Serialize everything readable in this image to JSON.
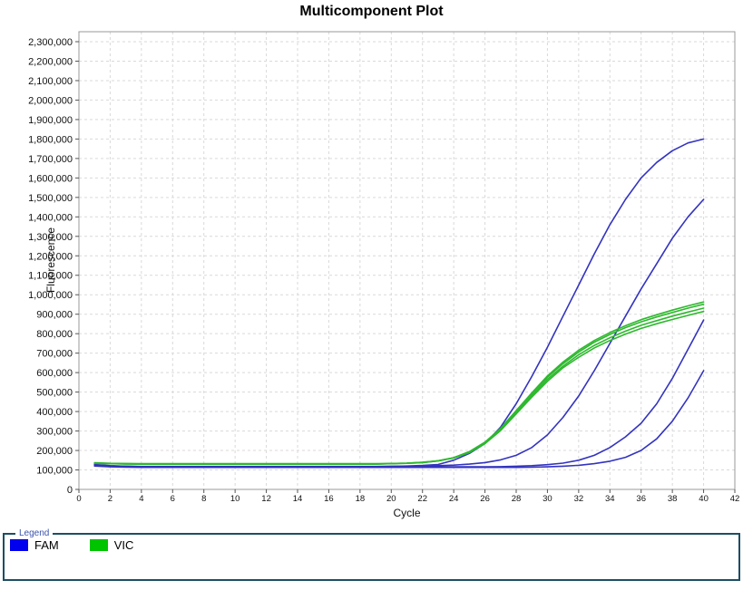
{
  "title": "Multicomponent Plot",
  "axes": {
    "x_label": "Cycle",
    "y_label": "Fluorescence"
  },
  "legend": {
    "title": "Legend",
    "items": [
      {
        "label": "FAM",
        "color": "#0000ee"
      },
      {
        "label": "VIC",
        "color": "#00c400"
      }
    ]
  },
  "colors": {
    "fam_curve": "#3333c0",
    "vic_curve": "#2eb82e",
    "gridline": "#d9d9d9",
    "plot_border": "#9a9a9a",
    "tick": "#555555",
    "legend_border": "#1d4e63"
  },
  "chart_data": {
    "type": "line",
    "title": "Multicomponent Plot",
    "xlabel": "Cycle",
    "ylabel": "Fluorescence",
    "xlim": [
      0,
      42
    ],
    "ylim": [
      0,
      2300000
    ],
    "grid": true,
    "legend_position": "bottom",
    "x_tick_labels": [
      "0",
      "2",
      "4",
      "6",
      "8",
      "10",
      "12",
      "14",
      "16",
      "18",
      "20",
      "22",
      "24",
      "26",
      "28",
      "30",
      "32",
      "34",
      "36",
      "38",
      "40",
      "42"
    ],
    "y_tick_labels": [
      "0",
      "100,000",
      "200,000",
      "300,000",
      "400,000",
      "500,000",
      "600,000",
      "700,000",
      "800,000",
      "900,000",
      "1,000,000",
      "1,100,000",
      "1,200,000",
      "1,300,000",
      "1,400,000",
      "1,500,000",
      "1,600,000",
      "1,700,000",
      "1,800,000",
      "1,900,000",
      "2,000,000",
      "2,100,000",
      "2,200,000",
      "2,300,000"
    ],
    "cycles": [
      1,
      2,
      3,
      4,
      5,
      6,
      7,
      8,
      9,
      10,
      11,
      12,
      13,
      14,
      15,
      16,
      17,
      18,
      19,
      20,
      21,
      22,
      23,
      24,
      25,
      26,
      27,
      28,
      29,
      30,
      31,
      32,
      33,
      34,
      35,
      36,
      37,
      38,
      39,
      40
    ],
    "series": [
      {
        "name": "FAM-1",
        "dye": "FAM",
        "color": "#3333c0",
        "values": [
          128000,
          122000,
          119000,
          117000,
          116000,
          115000,
          115000,
          115000,
          115000,
          115000,
          115000,
          115000,
          115000,
          115000,
          115000,
          115000,
          116000,
          116000,
          117000,
          118000,
          120000,
          123000,
          128000,
          150000,
          185000,
          235000,
          320000,
          440000,
          580000,
          730000,
          890000,
          1050000,
          1210000,
          1360000,
          1490000,
          1600000,
          1680000,
          1740000,
          1780000,
          1800000
        ]
      },
      {
        "name": "FAM-2",
        "dye": "FAM",
        "color": "#3333c0",
        "values": [
          126000,
          121000,
          119000,
          118000,
          118000,
          118000,
          118000,
          118000,
          118000,
          118000,
          118000,
          118000,
          118000,
          118000,
          118000,
          118000,
          118000,
          118000,
          118000,
          119000,
          119000,
          120000,
          122000,
          125000,
          130000,
          138000,
          152000,
          175000,
          215000,
          280000,
          370000,
          480000,
          610000,
          750000,
          890000,
          1030000,
          1160000,
          1290000,
          1400000,
          1490000
        ]
      },
      {
        "name": "FAM-3",
        "dye": "FAM",
        "color": "#3333c0",
        "values": [
          122000,
          118000,
          117000,
          116000,
          116000,
          116000,
          116000,
          116000,
          116000,
          116000,
          116000,
          116000,
          116000,
          116000,
          116000,
          116000,
          116000,
          116000,
          116000,
          116000,
          116000,
          116000,
          116000,
          116000,
          116000,
          116000,
          117000,
          119000,
          122000,
          127000,
          135000,
          150000,
          175000,
          215000,
          270000,
          340000,
          440000,
          570000,
          720000,
          870000
        ]
      },
      {
        "name": "FAM-4",
        "dye": "FAM",
        "color": "#3333c0",
        "values": [
          120000,
          116000,
          114000,
          113000,
          113000,
          113000,
          113000,
          113000,
          113000,
          113000,
          113000,
          113000,
          113000,
          113000,
          113000,
          113000,
          113000,
          113000,
          113000,
          113000,
          113000,
          113000,
          113000,
          113000,
          113000,
          113000,
          113000,
          113000,
          114000,
          116000,
          119000,
          124000,
          132000,
          145000,
          165000,
          200000,
          260000,
          350000,
          470000,
          610000
        ]
      },
      {
        "name": "VIC-1",
        "dye": "VIC",
        "color": "#2eb82e",
        "values": [
          137000,
          134000,
          133000,
          132000,
          132000,
          132000,
          132000,
          132000,
          132000,
          132000,
          132000,
          132000,
          132000,
          132000,
          132000,
          132000,
          132000,
          132000,
          132000,
          133000,
          135000,
          139000,
          147000,
          163000,
          194000,
          243000,
          314000,
          405000,
          496000,
          583000,
          654000,
          715000,
          765000,
          806000,
          841000,
          872000,
          897000,
          921000,
          943000,
          963000
        ]
      },
      {
        "name": "VIC-2",
        "dye": "VIC",
        "color": "#2eb82e",
        "values": [
          135000,
          133000,
          132000,
          131000,
          131000,
          131000,
          131000,
          131000,
          131000,
          131000,
          131000,
          131000,
          131000,
          131000,
          131000,
          131000,
          131000,
          131000,
          131000,
          133000,
          135000,
          139000,
          147000,
          163000,
          193000,
          241000,
          311000,
          401000,
          491000,
          576000,
          646000,
          706000,
          756000,
          796000,
          831000,
          861000,
          886000,
          909000,
          931000,
          951000
        ]
      },
      {
        "name": "VIC-3",
        "dye": "VIC",
        "color": "#2eb82e",
        "values": [
          134000,
          132000,
          131000,
          130000,
          130000,
          130000,
          130000,
          130000,
          130000,
          130000,
          130000,
          130000,
          130000,
          130000,
          130000,
          130000,
          130000,
          130000,
          130000,
          132000,
          134000,
          138000,
          146000,
          162000,
          191000,
          238000,
          307000,
          394000,
          482000,
          565000,
          633000,
          692000,
          740000,
          779000,
          813000,
          843000,
          867000,
          890000,
          911000,
          931000
        ]
      },
      {
        "name": "VIC-4",
        "dye": "VIC",
        "color": "#2eb82e",
        "values": [
          134000,
          132000,
          131000,
          130000,
          130000,
          130000,
          130000,
          130000,
          130000,
          130000,
          130000,
          130000,
          130000,
          130000,
          130000,
          130000,
          130000,
          130000,
          130000,
          132000,
          134000,
          138000,
          146000,
          161000,
          189000,
          235000,
          302000,
          388000,
          474000,
          555000,
          625000,
          679000,
          727000,
          765000,
          798000,
          827000,
          851000,
          873000,
          894000,
          914000
        ]
      }
    ]
  }
}
